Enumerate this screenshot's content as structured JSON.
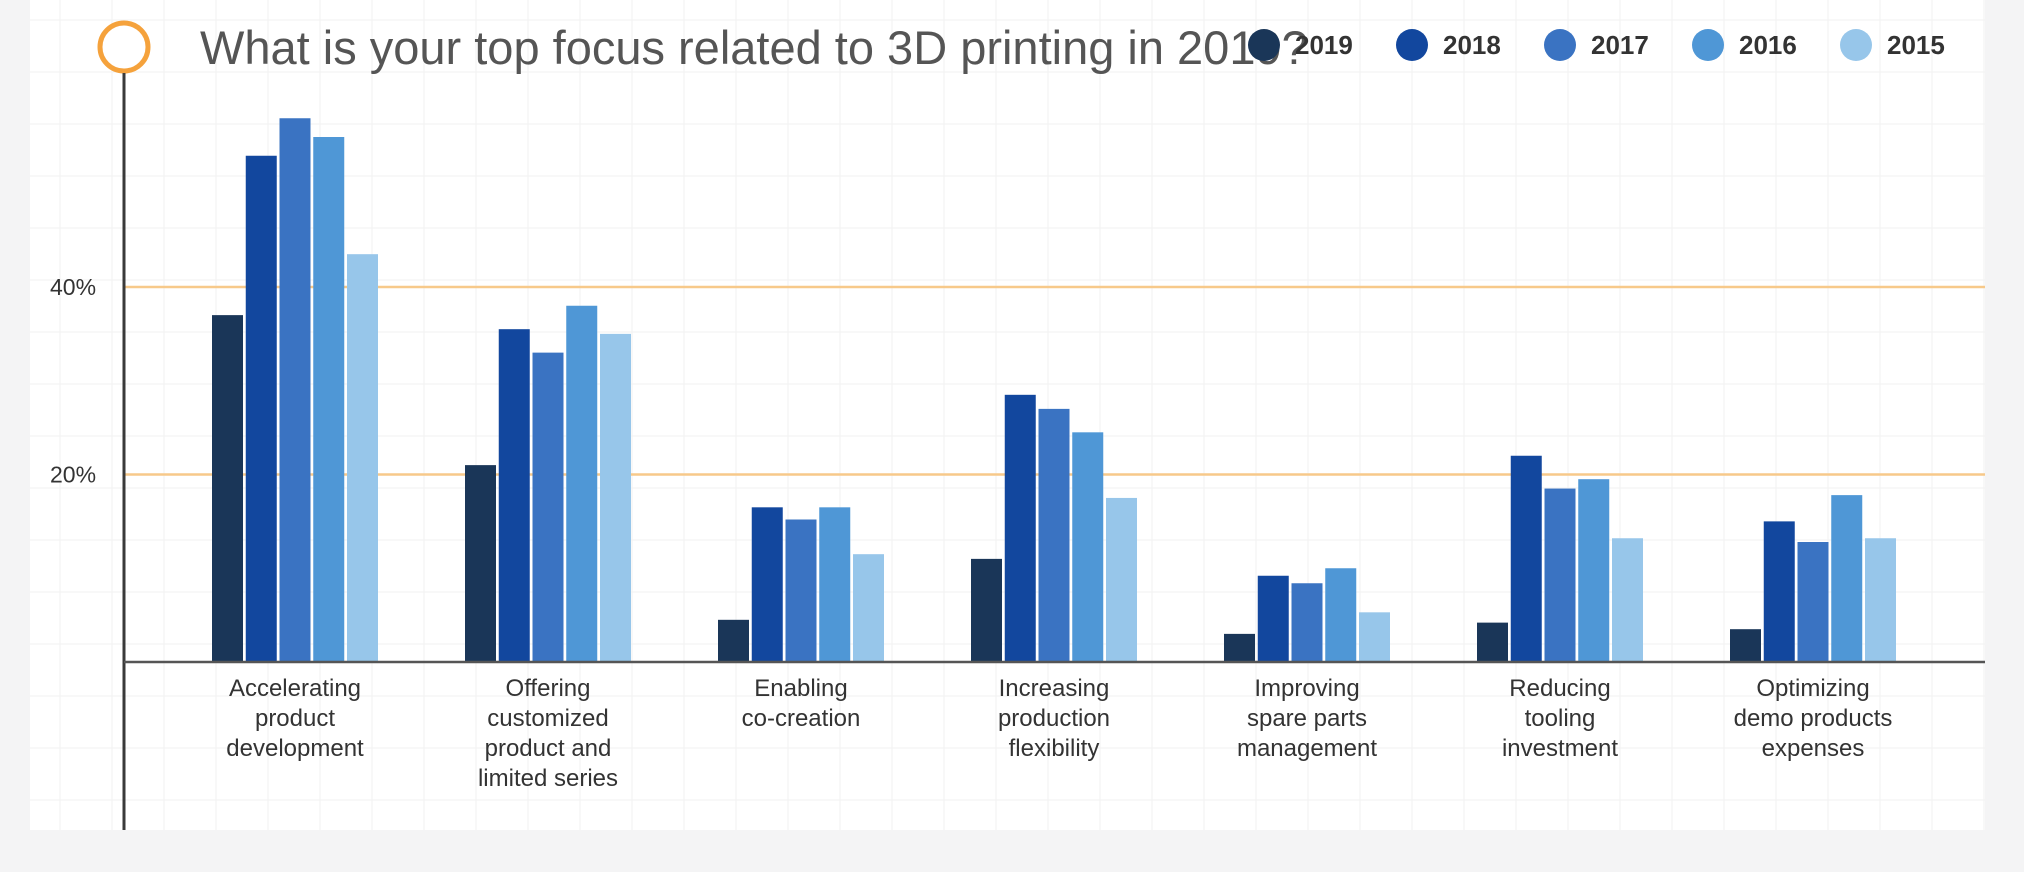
{
  "chart_data": {
    "type": "bar",
    "title": "What is your top focus related to 3D printing in 2019?",
    "categories": [
      [
        "Accelerating",
        "product",
        "development"
      ],
      [
        "Offering",
        "customized",
        "product and",
        "limited series"
      ],
      [
        "Enabling",
        "co-creation"
      ],
      [
        "Increasing",
        "production",
        "flexibility"
      ],
      [
        "Improving",
        "spare parts",
        "management"
      ],
      [
        "Reducing",
        "tooling",
        "investment"
      ],
      [
        "Optimizing",
        "demo products",
        "expenses"
      ]
    ],
    "series": [
      {
        "name": "2019",
        "color": "#1a3658",
        "values": [
          37,
          21,
          4.5,
          11,
          3,
          4.2,
          3.5
        ]
      },
      {
        "name": "2018",
        "color": "#12479e",
        "values": [
          54,
          35.5,
          16.5,
          28.5,
          9.2,
          22,
          15
        ]
      },
      {
        "name": "2017",
        "color": "#3a73c2",
        "values": [
          58,
          33,
          15.2,
          27,
          8.4,
          18.5,
          12.8
        ]
      },
      {
        "name": "2016",
        "color": "#4f97d6",
        "values": [
          56,
          38,
          16.5,
          24.5,
          10,
          19.5,
          17.8
        ]
      },
      {
        "name": "2015",
        "color": "#97c6ea",
        "values": [
          43.5,
          35,
          11.5,
          17.5,
          5.3,
          13.2,
          13.2
        ]
      }
    ],
    "yticks": [
      {
        "value": 40,
        "label": "40%"
      },
      {
        "value": 20,
        "label": "20%"
      }
    ],
    "ylim": [
      0,
      60
    ],
    "gridlines": "orange, at labeled ticks",
    "legend_position": "top-right",
    "xlabel": "",
    "ylabel": ""
  }
}
